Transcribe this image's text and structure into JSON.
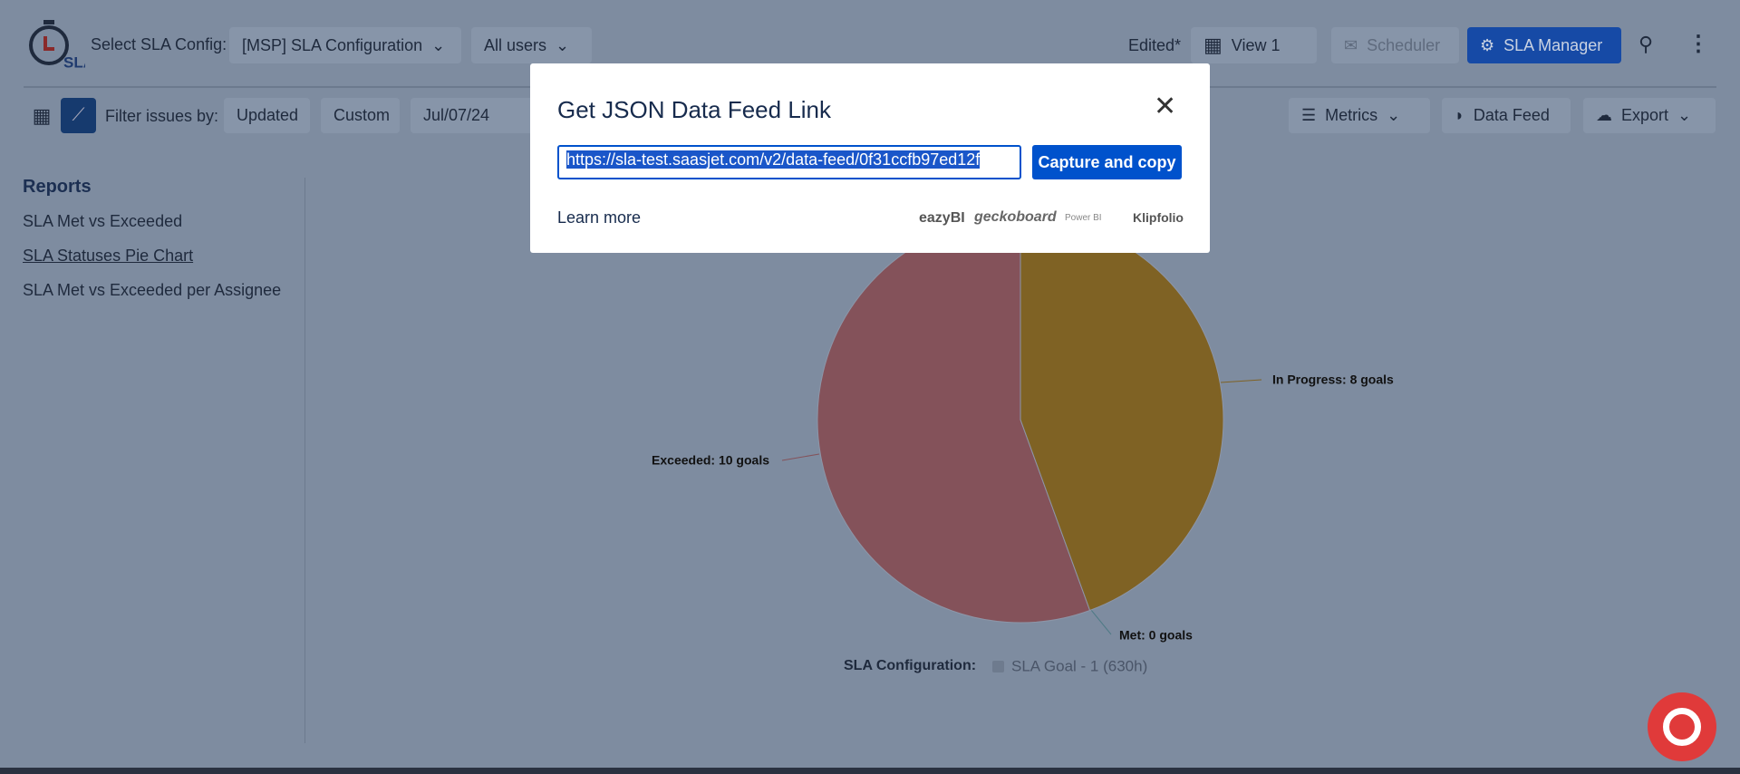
{
  "header": {
    "logo_text": "SLA",
    "config_label": "Select SLA Config:",
    "config_value": "[MSP] SLA Configuration",
    "users": "All users",
    "status": "Edited*",
    "view": "View 1",
    "scheduler": "Scheduler",
    "manager": "SLA Manager"
  },
  "toolbar": {
    "filter_label": "Filter issues by:",
    "filters": [
      "Updated",
      "Custom",
      "Jul/07/24"
    ],
    "actions": [
      "Metrics",
      "Data Feed",
      "Export"
    ]
  },
  "sidebar": {
    "title": "Reports",
    "links": [
      "SLA Met vs Exceeded",
      "SLA Statuses Pie Chart",
      "SLA Met vs Exceeded per Assignee"
    ]
  },
  "chart_data": {
    "type": "pie",
    "values": [
      8,
      10,
      0
    ],
    "value_labels": [
      "In Progress: 8 goals",
      "Exceeded: 10 goals",
      "Met: 0 goals"
    ],
    "colors": [
      "#7f6224",
      "#84525a",
      "#4f7a86"
    ],
    "legend_title": "SLA Configuration:",
    "legend": "SLA Goal - 1 (630h)"
  },
  "modal": {
    "title": "Get JSON Data Feed Link",
    "url": "https://sla-test.saasjet.com/v2/data-feed/0f31ccfb97ed12f",
    "button": "Capture and copy",
    "learn_more": "Learn more",
    "integrations": [
      "eazyBI",
      "geckoboard",
      "Power BI",
      "Klipfolio"
    ]
  }
}
